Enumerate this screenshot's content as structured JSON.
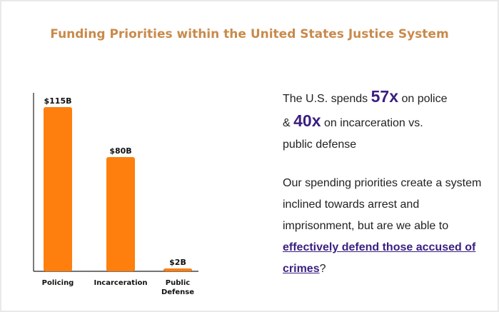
{
  "title": "Funding Priorities within the United States Justice System",
  "chart_data": {
    "type": "bar",
    "categories": [
      "Policing",
      "Incarceration",
      "Public Defense"
    ],
    "category_lines": [
      [
        "Policing"
      ],
      [
        "Incarceration"
      ],
      [
        "Public",
        "Defense"
      ]
    ],
    "values": [
      115,
      80,
      2
    ],
    "value_labels": [
      "$115B",
      "$80B",
      "$2B"
    ],
    "ylim": [
      0,
      125
    ],
    "grid": false,
    "colors": {
      "bar": "#ff7f0e"
    }
  },
  "statement": {
    "prefix": "The U.S. spends",
    "police_multiple": "57x",
    "on_police": "on police",
    "amp": "&",
    "incarceration_multiple": "40x",
    "on_incarceration": "on incarceration vs.",
    "suffix": "public defense"
  },
  "question": {
    "text": "Our spending priorities create a system inclined towards arrest and imprisonment, but are we able to",
    "link_text": "effectively defend those accused of crimes",
    "end": "?"
  },
  "colors": {
    "title": "#c98a4b",
    "accent": "#3b1f80"
  }
}
